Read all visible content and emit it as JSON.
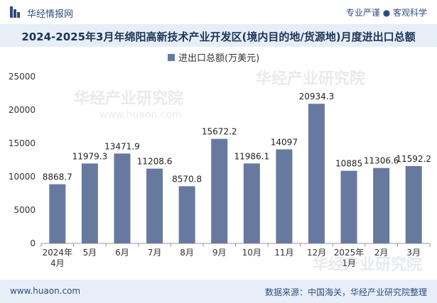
{
  "header": {
    "brand": "华经情报网",
    "tagline": "专业严谨 ● 客观科学"
  },
  "title": "2024-2025年3月年绵阳高新技术产业开发区(境内目的地/货源地)月度进出口总额",
  "footer": {
    "url": "www.huaon.com",
    "source": "数据来源：中国海关，华经产业研究院整理"
  },
  "watermarks": [
    "华经产业研究院",
    "www.huaon.com"
  ],
  "colors": {
    "bar": "#67799e",
    "titlebar": "#e7eef7",
    "text_dark": "#1e3556"
  },
  "chart_data": {
    "type": "bar",
    "categories": [
      [
        "2024年",
        "4月"
      ],
      [
        "5月"
      ],
      [
        "6月"
      ],
      [
        "7月"
      ],
      [
        "8月"
      ],
      [
        "9月"
      ],
      [
        "10月"
      ],
      [
        "11月"
      ],
      [
        "12月"
      ],
      [
        "2025年",
        "1月"
      ],
      [
        "2月"
      ],
      [
        "3月"
      ]
    ],
    "series": [
      {
        "name": "进出口总额(万美元)",
        "values": [
          8868.7,
          11979.3,
          13471.9,
          11208.6,
          8570.8,
          15672.2,
          11986.1,
          14097,
          20934.3,
          10885,
          11306.6,
          11592.2
        ],
        "labels": [
          "8868.7",
          "11979.3",
          "13471.9",
          "11208.6",
          "8570.8",
          "15672.2",
          "11986.1",
          "14097",
          "20934.3",
          "10885",
          "11306.6",
          "11592.2"
        ]
      }
    ],
    "ylim": [
      0,
      25000
    ],
    "yticks": [
      0,
      5000,
      10000,
      15000,
      20000,
      25000
    ],
    "legend_position": "top-center",
    "grid": false
  }
}
